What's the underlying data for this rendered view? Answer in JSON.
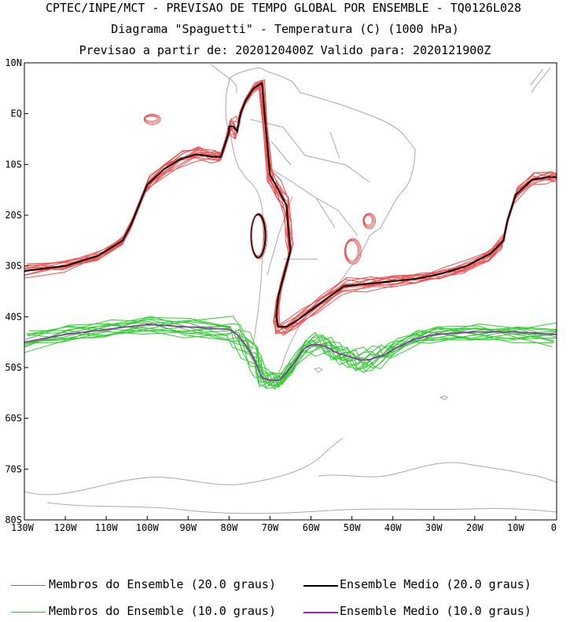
{
  "header": {
    "line1": "CPTEC/INPE/MCT - PREVISAO DE TEMPO GLOBAL POR ENSEMBLE - TQ0126L028",
    "line2": "Diagrama \"Spaguetti\" - Temperatura (C) (1000 hPa)",
    "line3": "Previsao a partir de: 2020120400Z  Valido para: 2020121900Z"
  },
  "legend": [
    {
      "label": "Membros do Ensemble (20.0 graus)",
      "color": "#f05050"
    },
    {
      "label": "Ensemble Medio (20.0 graus)",
      "color": "#000000"
    },
    {
      "label": "Membros do Ensemble (10.0 graus)",
      "color": "#2ecc2e"
    },
    {
      "label": "Ensemble Medio (10.0 graus)",
      "color": "#a020c0"
    }
  ],
  "chart_data": {
    "type": "line",
    "map_region": "South America and adjacent oceans",
    "xlim": [
      -130,
      0
    ],
    "ylim": [
      -80,
      10
    ],
    "x_ticks": [
      "130W",
      "120W",
      "110W",
      "100W",
      "90W",
      "80W",
      "70W",
      "60W",
      "50W",
      "40W",
      "30W",
      "20W",
      "10W",
      "0"
    ],
    "y_ticks": [
      "10N",
      "EQ",
      "10S",
      "20S",
      "30S",
      "40S",
      "50S",
      "60S",
      "70S",
      "80S"
    ],
    "contour_levels": [
      20.0,
      10.0
    ],
    "series": [
      {
        "name": "Ensemble Medio (20.0 graus)",
        "color": "#000000",
        "lon": [
          -130,
          -120,
          -112,
          -106,
          -104,
          -102,
          -100,
          -96,
          -92,
          -88,
          -84,
          -82,
          -81,
          -80,
          -80,
          -79,
          -78,
          -77.5,
          -77,
          -76,
          -74,
          -72,
          -70,
          -68,
          -66,
          -65.5,
          -65,
          -66,
          -67,
          -68,
          -68.5,
          -68,
          -66,
          -63,
          -58,
          -52,
          -46,
          -40,
          -34,
          -28,
          -22,
          -16,
          -13,
          -12,
          -10,
          -6,
          -2,
          0
        ],
        "lat": [
          -31,
          -30,
          -28,
          -25,
          -22,
          -18,
          -14,
          -11,
          -9,
          -8,
          -8.5,
          -8.5,
          -6,
          -3.5,
          -2.5,
          -2.5,
          -3.5,
          -1,
          0.5,
          2.5,
          5,
          6,
          -12,
          -15,
          -18,
          -23,
          -27,
          -30,
          -33,
          -36,
          -40,
          -42,
          -42,
          -40.5,
          -37.5,
          -34,
          -33.5,
          -33,
          -32.5,
          -31.5,
          -30,
          -27.5,
          -25,
          -21,
          -16,
          -13,
          -12.5,
          -12.5
        ]
      },
      {
        "name": "Ensemble Medio (10.0 graus)",
        "color": "#a020c0",
        "lon": [
          -130,
          -120,
          -110,
          -100,
          -90,
          -80,
          -78,
          -76,
          -74,
          -73,
          -72,
          -70,
          -68,
          -67,
          -66,
          -64,
          -62,
          -60,
          -58,
          -56,
          -54,
          -52,
          -50,
          -48,
          -46,
          -44,
          -42,
          -40,
          -35,
          -30,
          -20,
          -10,
          0
        ],
        "lat": [
          -45,
          -43.5,
          -42.5,
          -41.5,
          -42,
          -42.5,
          -43.5,
          -45.5,
          -48,
          -50,
          -52,
          -52.5,
          -52.5,
          -52,
          -51,
          -49,
          -46.5,
          -45.5,
          -45.5,
          -46,
          -47,
          -47.5,
          -48,
          -48.5,
          -48.5,
          -48,
          -47.5,
          -46.5,
          -44.5,
          -43.5,
          -43,
          -43,
          -43.5
        ]
      }
    ]
  }
}
